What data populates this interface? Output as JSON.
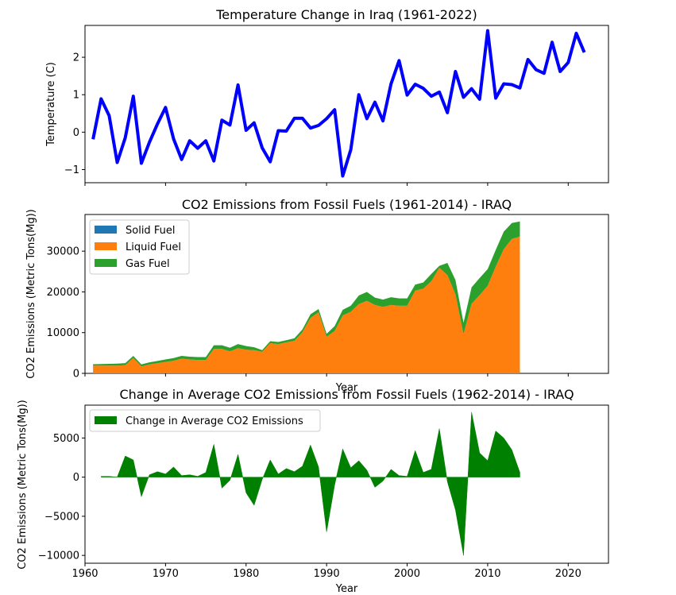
{
  "chart_data": [
    {
      "type": "line",
      "title": "Temperature Change in Iraq (1961-2022)",
      "xlabel": "",
      "ylabel": "Temperature (C)",
      "xlim": [
        1960,
        2025
      ],
      "ylim": [
        -1.35,
        2.85
      ],
      "yticks": [
        -1,
        0,
        1,
        2
      ],
      "xticks": [
        1960,
        1970,
        1980,
        1990,
        2000,
        2010,
        2020
      ],
      "show_xticklabels": false,
      "line_color": "#0000ff",
      "x": [
        1961,
        1962,
        1963,
        1964,
        1965,
        1966,
        1967,
        1968,
        1969,
        1970,
        1971,
        1972,
        1973,
        1974,
        1975,
        1976,
        1977,
        1978,
        1979,
        1980,
        1981,
        1982,
        1983,
        1984,
        1985,
        1986,
        1987,
        1988,
        1989,
        1990,
        1991,
        1992,
        1993,
        1994,
        1995,
        1996,
        1997,
        1998,
        1999,
        2000,
        2001,
        2002,
        2003,
        2004,
        2005,
        2006,
        2007,
        2008,
        2009,
        2010,
        2011,
        2012,
        2013,
        2014,
        2015,
        2016,
        2017,
        2018,
        2019,
        2020,
        2021,
        2022
      ],
      "values": [
        -0.19,
        0.89,
        0.44,
        -0.81,
        -0.15,
        0.96,
        -0.83,
        -0.27,
        0.22,
        0.66,
        -0.18,
        -0.73,
        -0.23,
        -0.43,
        -0.23,
        -0.77,
        0.32,
        0.19,
        1.26,
        0.05,
        0.25,
        -0.42,
        -0.79,
        0.04,
        0.03,
        0.37,
        0.37,
        0.11,
        0.18,
        0.36,
        0.6,
        -1.17,
        -0.47,
        1.0,
        0.36,
        0.8,
        0.3,
        1.29,
        1.91,
        0.99,
        1.28,
        1.17,
        0.96,
        1.07,
        0.52,
        1.62,
        0.93,
        1.16,
        0.88,
        2.71,
        0.91,
        1.29,
        1.27,
        1.18,
        1.94,
        1.67,
        1.57,
        2.4,
        1.62,
        1.86,
        2.64,
        2.13
      ]
    },
    {
      "type": "area",
      "stacked": true,
      "title": "CO2 Emissions from Fossil Fuels (1961-2014) - IRAQ",
      "xlabel": "Year",
      "ylabel": "CO2 Emissions (Metric Tons(Mg))",
      "xlim": [
        1960,
        2025
      ],
      "ylim": [
        0,
        39000
      ],
      "yticks": [
        0,
        10000,
        20000,
        30000
      ],
      "legend_position": "upper-left",
      "x": [
        1961,
        1962,
        1963,
        1964,
        1965,
        1966,
        1967,
        1968,
        1969,
        1970,
        1971,
        1972,
        1973,
        1974,
        1975,
        1976,
        1977,
        1978,
        1979,
        1980,
        1981,
        1982,
        1983,
        1984,
        1985,
        1986,
        1987,
        1988,
        1989,
        1990,
        1991,
        1992,
        1993,
        1994,
        1995,
        1996,
        1997,
        1998,
        1999,
        2000,
        2001,
        2002,
        2003,
        2004,
        2005,
        2006,
        2007,
        2008,
        2009,
        2010,
        2011,
        2012,
        2013,
        2014
      ],
      "series": [
        {
          "name": "Solid Fuel",
          "color": "#1f77b4",
          "values": [
            0,
            0,
            0,
            0,
            0,
            0,
            0,
            0,
            0,
            0,
            0,
            0,
            0,
            0,
            0,
            0,
            0,
            0,
            0,
            0,
            0,
            0,
            0,
            0,
            0,
            0,
            0,
            0,
            0,
            0,
            0,
            0,
            0,
            0,
            0,
            0,
            0,
            0,
            0,
            0,
            0,
            0,
            0,
            0,
            0,
            0,
            0,
            0,
            0,
            0,
            0,
            0,
            0,
            0
          ]
        },
        {
          "name": "Liquid Fuel",
          "color": "#ff7f0e",
          "values": [
            1900,
            1900,
            1900,
            1900,
            2000,
            3800,
            1700,
            2200,
            2500,
            2800,
            3100,
            3600,
            3400,
            3300,
            3300,
            6000,
            6000,
            5400,
            6200,
            5800,
            5700,
            5300,
            7400,
            7200,
            7600,
            8000,
            10100,
            13600,
            15000,
            9000,
            10400,
            14200,
            15100,
            17000,
            17800,
            16800,
            16300,
            16800,
            16600,
            16600,
            20300,
            20800,
            22600,
            25900,
            24100,
            19400,
            9600,
            17100,
            19200,
            21500,
            26200,
            30500,
            33000,
            33600
          ]
        },
        {
          "name": "Gas Fuel",
          "color": "#2ca02c",
          "values": [
            350,
            400,
            450,
            500,
            500,
            500,
            500,
            500,
            550,
            600,
            650,
            700,
            700,
            700,
            700,
            900,
            900,
            900,
            1000,
            900,
            700,
            400,
            500,
            500,
            550,
            600,
            700,
            900,
            800,
            700,
            1200,
            1400,
            1500,
            2100,
            2200,
            1800,
            1800,
            1900,
            1800,
            1800,
            1500,
            1500,
            1800,
            500,
            3000,
            3500,
            2800,
            4000,
            4200,
            4100,
            4100,
            4300,
            3900,
            3700
          ]
        }
      ]
    },
    {
      "type": "area",
      "title": "Change in Average CO2 Emissions from Fossil Fuels (1962-2014) - IRAQ",
      "xlabel": "Year",
      "ylabel": "CO2 Emissions (Metric Tons(Mg))",
      "xlim": [
        1960,
        2025
      ],
      "ylim": [
        -11000,
        9200
      ],
      "yticks": [
        -10000,
        -5000,
        0,
        5000
      ],
      "xticks": [
        1960,
        1970,
        1980,
        1990,
        2000,
        2010,
        2020
      ],
      "legend_position": "upper-left",
      "series": [
        {
          "name": "Change in Average CO2 Emissions",
          "color": "#008000",
          "x": [
            1962,
            1963,
            1964,
            1965,
            1966,
            1967,
            1968,
            1969,
            1970,
            1971,
            1972,
            1973,
            1974,
            1975,
            1976,
            1977,
            1978,
            1979,
            1980,
            1981,
            1982,
            1983,
            1984,
            1985,
            1986,
            1987,
            1988,
            1989,
            1990,
            1991,
            1992,
            1993,
            1994,
            1995,
            1996,
            1997,
            1998,
            1999,
            2000,
            2001,
            2002,
            2003,
            2004,
            2005,
            2006,
            2007,
            2008,
            2009,
            2010,
            2011,
            2012,
            2013,
            2014
          ],
          "values": [
            100,
            100,
            0,
            2700,
            2200,
            -2500,
            300,
            700,
            400,
            1300,
            200,
            300,
            100,
            600,
            4200,
            -1400,
            -400,
            2900,
            -2000,
            -3600,
            -300,
            2200,
            400,
            1100,
            700,
            1400,
            4100,
            1300,
            -7000,
            -1000,
            3600,
            1200,
            2100,
            900,
            -1300,
            -500,
            1000,
            200,
            100,
            3400,
            600,
            1000,
            6200,
            -600,
            -4200,
            -10000,
            8300,
            3100,
            2100,
            5900,
            5000,
            3500,
            600
          ]
        }
      ]
    }
  ]
}
